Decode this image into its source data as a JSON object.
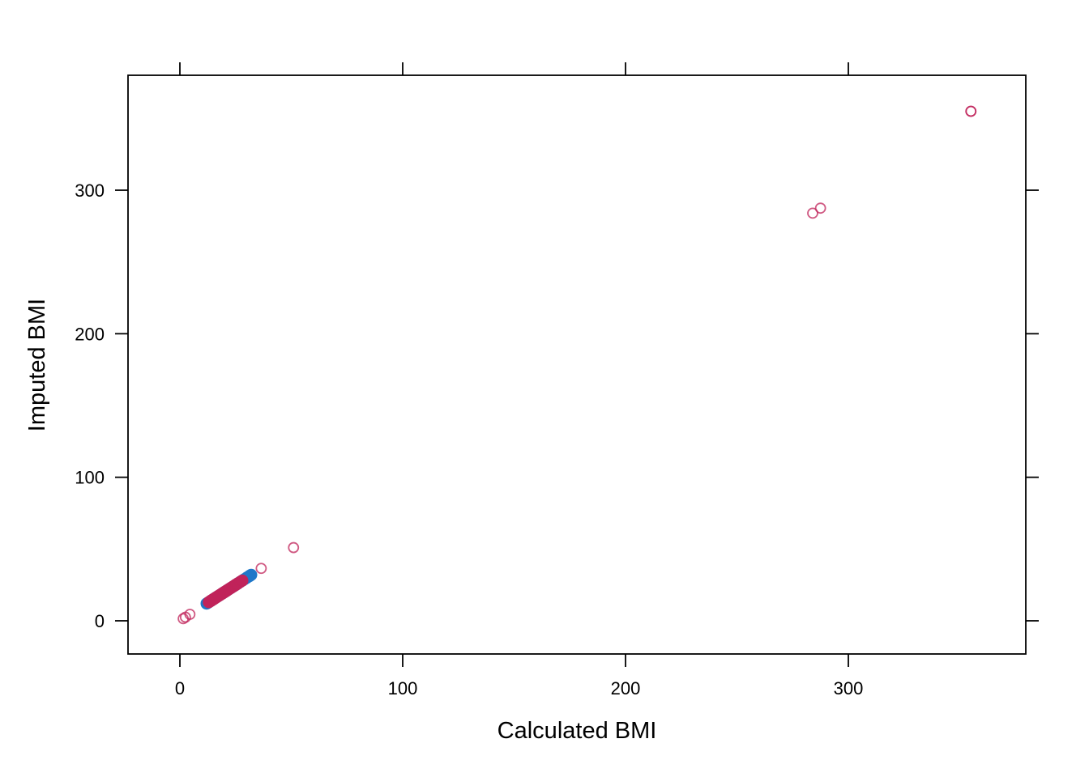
{
  "chart_data": {
    "type": "scatter",
    "title": "",
    "xlabel": "Calculated BMI",
    "ylabel": "Imputed BMI",
    "xlim": [
      -23,
      380
    ],
    "ylim": [
      -23,
      380
    ],
    "x_ticks": [
      0,
      100,
      200,
      300
    ],
    "y_ticks": [
      0,
      100,
      200,
      300
    ],
    "x_tick_labels": [
      "0",
      "100",
      "200",
      "300"
    ],
    "y_tick_labels": [
      "0",
      "100",
      "200",
      "300"
    ],
    "grid": false,
    "legend": "none",
    "series": [
      {
        "style": "filled",
        "color": "#1f77c8",
        "x": [
          12,
          12.5,
          13,
          14,
          15,
          16,
          17,
          18,
          19,
          20,
          21,
          22,
          23,
          24,
          25,
          26,
          27,
          28,
          29,
          30,
          31,
          31.5,
          32
        ],
        "y": [
          12,
          12.5,
          13,
          14,
          15,
          16,
          17,
          18,
          19,
          20,
          21,
          22,
          23,
          24,
          25,
          26,
          27,
          28,
          29,
          30,
          31,
          31.5,
          32
        ]
      },
      {
        "style": "filled",
        "color": "#c0235a",
        "x": [
          13,
          13.5,
          14,
          14.5,
          15,
          15.5,
          16,
          16.5,
          17,
          17.5,
          18,
          18.5,
          19,
          19.5,
          20,
          20.5,
          21,
          21.5,
          22,
          22.5,
          23,
          23.5,
          24,
          24.5,
          25,
          25.5,
          26,
          27,
          28
        ],
        "y": [
          13,
          13.5,
          14,
          14.5,
          15,
          15.5,
          16,
          16.5,
          17,
          17.5,
          18,
          18.5,
          19,
          19.5,
          20,
          20.5,
          21,
          21.5,
          22,
          22.5,
          23,
          23.5,
          24,
          24.5,
          25,
          25.5,
          26,
          27,
          28
        ]
      },
      {
        "style": "open",
        "color": "#c0235a",
        "x": [
          1.5,
          2.5,
          4.5,
          36.5,
          51,
          284,
          287.5,
          355,
          355
        ],
        "y": [
          1.5,
          2.5,
          4.5,
          36.5,
          51,
          284,
          287.5,
          355,
          355
        ]
      }
    ]
  }
}
